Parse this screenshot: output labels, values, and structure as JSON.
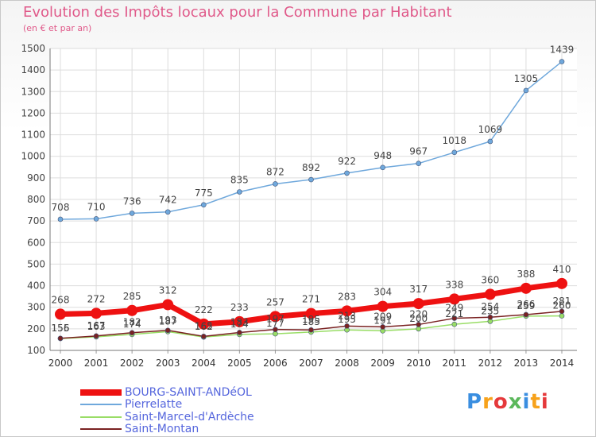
{
  "header": {
    "title": "Evolution des Impôts locaux pour la Commune par Habitant",
    "subtitle": "(en € et par an)"
  },
  "logo": {
    "text": "Proxiti",
    "colors": [
      "#3a8ee0",
      "#f7a21b",
      "#e5393b",
      "#5cb85c"
    ]
  },
  "chart_data": {
    "type": "line",
    "title": "Evolution des Impôts locaux pour la Commune par Habitant",
    "subtitle": "(en € et par an)",
    "x": [
      "2000",
      "2001",
      "2002",
      "2003",
      "2004",
      "2005",
      "2006",
      "2007",
      "2008",
      "2009",
      "2010",
      "2011",
      "2012",
      "2013",
      "2014"
    ],
    "ylim": [
      100,
      1500
    ],
    "yticks": [
      100,
      200,
      300,
      400,
      500,
      600,
      700,
      800,
      900,
      1000,
      1100,
      1200,
      1300,
      1400,
      1500
    ],
    "grid": true,
    "legend_position": "bottom-left",
    "series": [
      {
        "name": "BOURG-SAINT-ANDéOL",
        "color": "#ee1111",
        "values": [
          268,
          272,
          285,
          312,
          222,
          233,
          257,
          271,
          283,
          304,
          317,
          338,
          360,
          388,
          410
        ]
      },
      {
        "name": "Pierrelatte",
        "color": "#6fa8dc",
        "values": [
          708,
          710,
          736,
          742,
          775,
          835,
          872,
          892,
          922,
          948,
          967,
          1018,
          1069,
          1305,
          1439
        ]
      },
      {
        "name": "Saint-Marcel-d'Ardèche",
        "color": "#99dd66",
        "values": [
          155,
          163,
          174,
          187,
          162,
          174,
          177,
          185,
          195,
          191,
          200,
          221,
          235,
          259,
          260
        ]
      },
      {
        "name": "Saint-Montan",
        "color": "#7a2222",
        "values": [
          156,
          167,
          182,
          193,
          165,
          183,
          197,
          195,
          213,
          209,
          220,
          249,
          254,
          266,
          281
        ]
      }
    ]
  }
}
